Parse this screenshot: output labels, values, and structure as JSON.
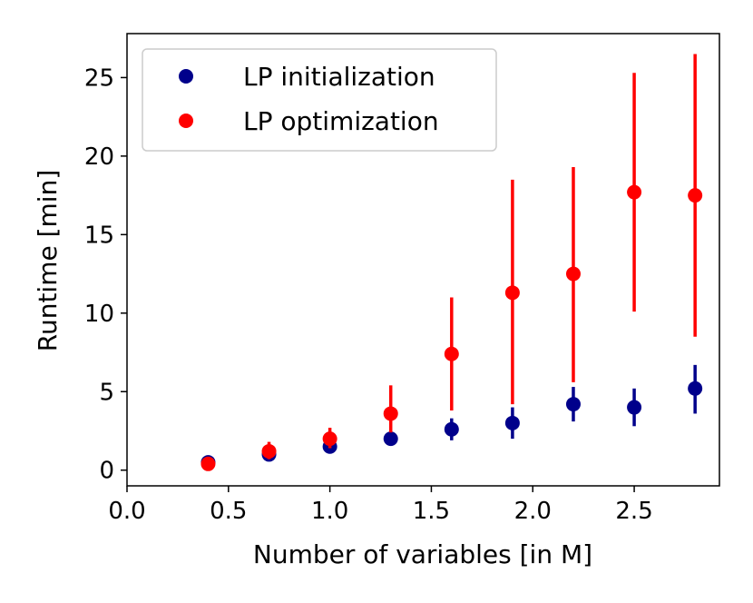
{
  "chart_data": {
    "type": "scatter",
    "title": "",
    "xlabel": "Number of variables [in M]",
    "ylabel": "Runtime [min]",
    "xlim": [
      0.0,
      2.92
    ],
    "ylim": [
      -1.0,
      27.8
    ],
    "xticks": [
      0.0,
      0.5,
      1.0,
      1.5,
      2.0,
      2.5
    ],
    "xtick_labels": [
      "0.0",
      "0.5",
      "1.0",
      "1.5",
      "2.0",
      "2.5"
    ],
    "yticks": [
      0,
      5,
      10,
      15,
      20,
      25
    ],
    "ytick_labels": [
      "0",
      "5",
      "10",
      "15",
      "20",
      "25"
    ],
    "grid": false,
    "legend_position": "top-left",
    "series": [
      {
        "name": "LP initialization",
        "color": "#00008b",
        "x": [
          0.4,
          0.7,
          1.0,
          1.3,
          1.6,
          1.9,
          2.2,
          2.5,
          2.8
        ],
        "y": [
          0.5,
          1.0,
          1.5,
          2.0,
          2.6,
          3.0,
          4.2,
          4.0,
          5.2
        ],
        "err_low": [
          0.4,
          0.8,
          1.3,
          1.8,
          1.9,
          2.0,
          3.1,
          2.8,
          3.6
        ],
        "err_high": [
          0.6,
          1.2,
          1.8,
          2.2,
          3.3,
          4.0,
          5.3,
          5.2,
          6.7
        ]
      },
      {
        "name": "LP optimization",
        "color": "#ff0000",
        "x": [
          0.4,
          0.7,
          1.0,
          1.3,
          1.6,
          1.9,
          2.2,
          2.5,
          2.8
        ],
        "y": [
          0.4,
          1.2,
          2.0,
          3.6,
          7.4,
          11.3,
          12.5,
          17.7,
          17.5
        ],
        "err_low": [
          0.2,
          0.7,
          1.4,
          2.4,
          3.8,
          4.2,
          5.6,
          10.1,
          8.5
        ],
        "err_high": [
          0.6,
          1.8,
          2.7,
          5.4,
          11.0,
          18.5,
          19.3,
          25.3,
          26.5
        ]
      }
    ]
  }
}
